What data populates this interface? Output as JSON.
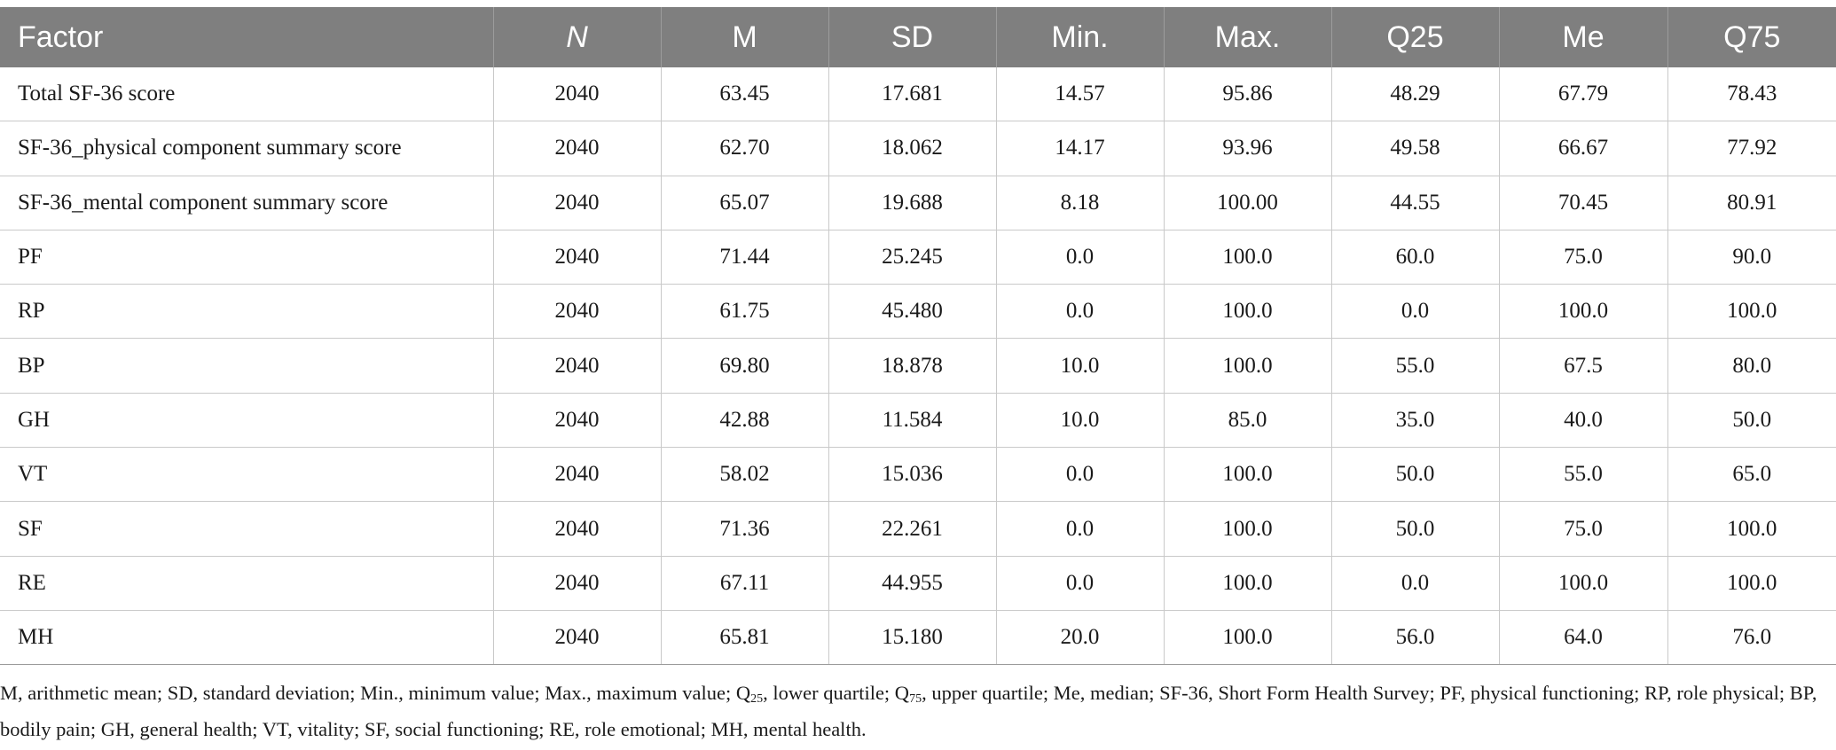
{
  "table": {
    "headers": [
      "Factor",
      "N",
      "M",
      "SD",
      "Min.",
      "Max.",
      "Q25",
      "Me",
      "Q75"
    ],
    "rows": [
      [
        "Total SF-36 score",
        "2040",
        "63.45",
        "17.681",
        "14.57",
        "95.86",
        "48.29",
        "67.79",
        "78.43"
      ],
      [
        "SF-36_physical component summary score",
        "2040",
        "62.70",
        "18.062",
        "14.17",
        "93.96",
        "49.58",
        "66.67",
        "77.92"
      ],
      [
        "SF-36_mental component summary score",
        "2040",
        "65.07",
        "19.688",
        "8.18",
        "100.00",
        "44.55",
        "70.45",
        "80.91"
      ],
      [
        "PF",
        "2040",
        "71.44",
        "25.245",
        "0.0",
        "100.0",
        "60.0",
        "75.0",
        "90.0"
      ],
      [
        "RP",
        "2040",
        "61.75",
        "45.480",
        "0.0",
        "100.0",
        "0.0",
        "100.0",
        "100.0"
      ],
      [
        "BP",
        "2040",
        "69.80",
        "18.878",
        "10.0",
        "100.0",
        "55.0",
        "67.5",
        "80.0"
      ],
      [
        "GH",
        "2040",
        "42.88",
        "11.584",
        "10.0",
        "85.0",
        "35.0",
        "40.0",
        "50.0"
      ],
      [
        "VT",
        "2040",
        "58.02",
        "15.036",
        "0.0",
        "100.0",
        "50.0",
        "55.0",
        "65.0"
      ],
      [
        "SF",
        "2040",
        "71.36",
        "22.261",
        "0.0",
        "100.0",
        "50.0",
        "75.0",
        "100.0"
      ],
      [
        "RE",
        "2040",
        "67.11",
        "44.955",
        "0.0",
        "100.0",
        "0.0",
        "100.0",
        "100.0"
      ],
      [
        "MH",
        "2040",
        "65.81",
        "15.180",
        "20.0",
        "100.0",
        "56.0",
        "64.0",
        "76.0"
      ]
    ]
  },
  "footnote": {
    "part1": "M, arithmetic mean; SD, standard deviation; Min., minimum value; Max., maximum value; Q",
    "sub1": "25",
    "part2": ", lower quartile; Q",
    "sub2": "75",
    "part3": ", upper quartile; Me, median; SF-36, Short Form Health Survey; PF, physical functioning; RP, role physical; BP, bodily pain; GH, general health; VT, vitality; SF, social functioning; RE, role emotional; MH, mental health."
  }
}
